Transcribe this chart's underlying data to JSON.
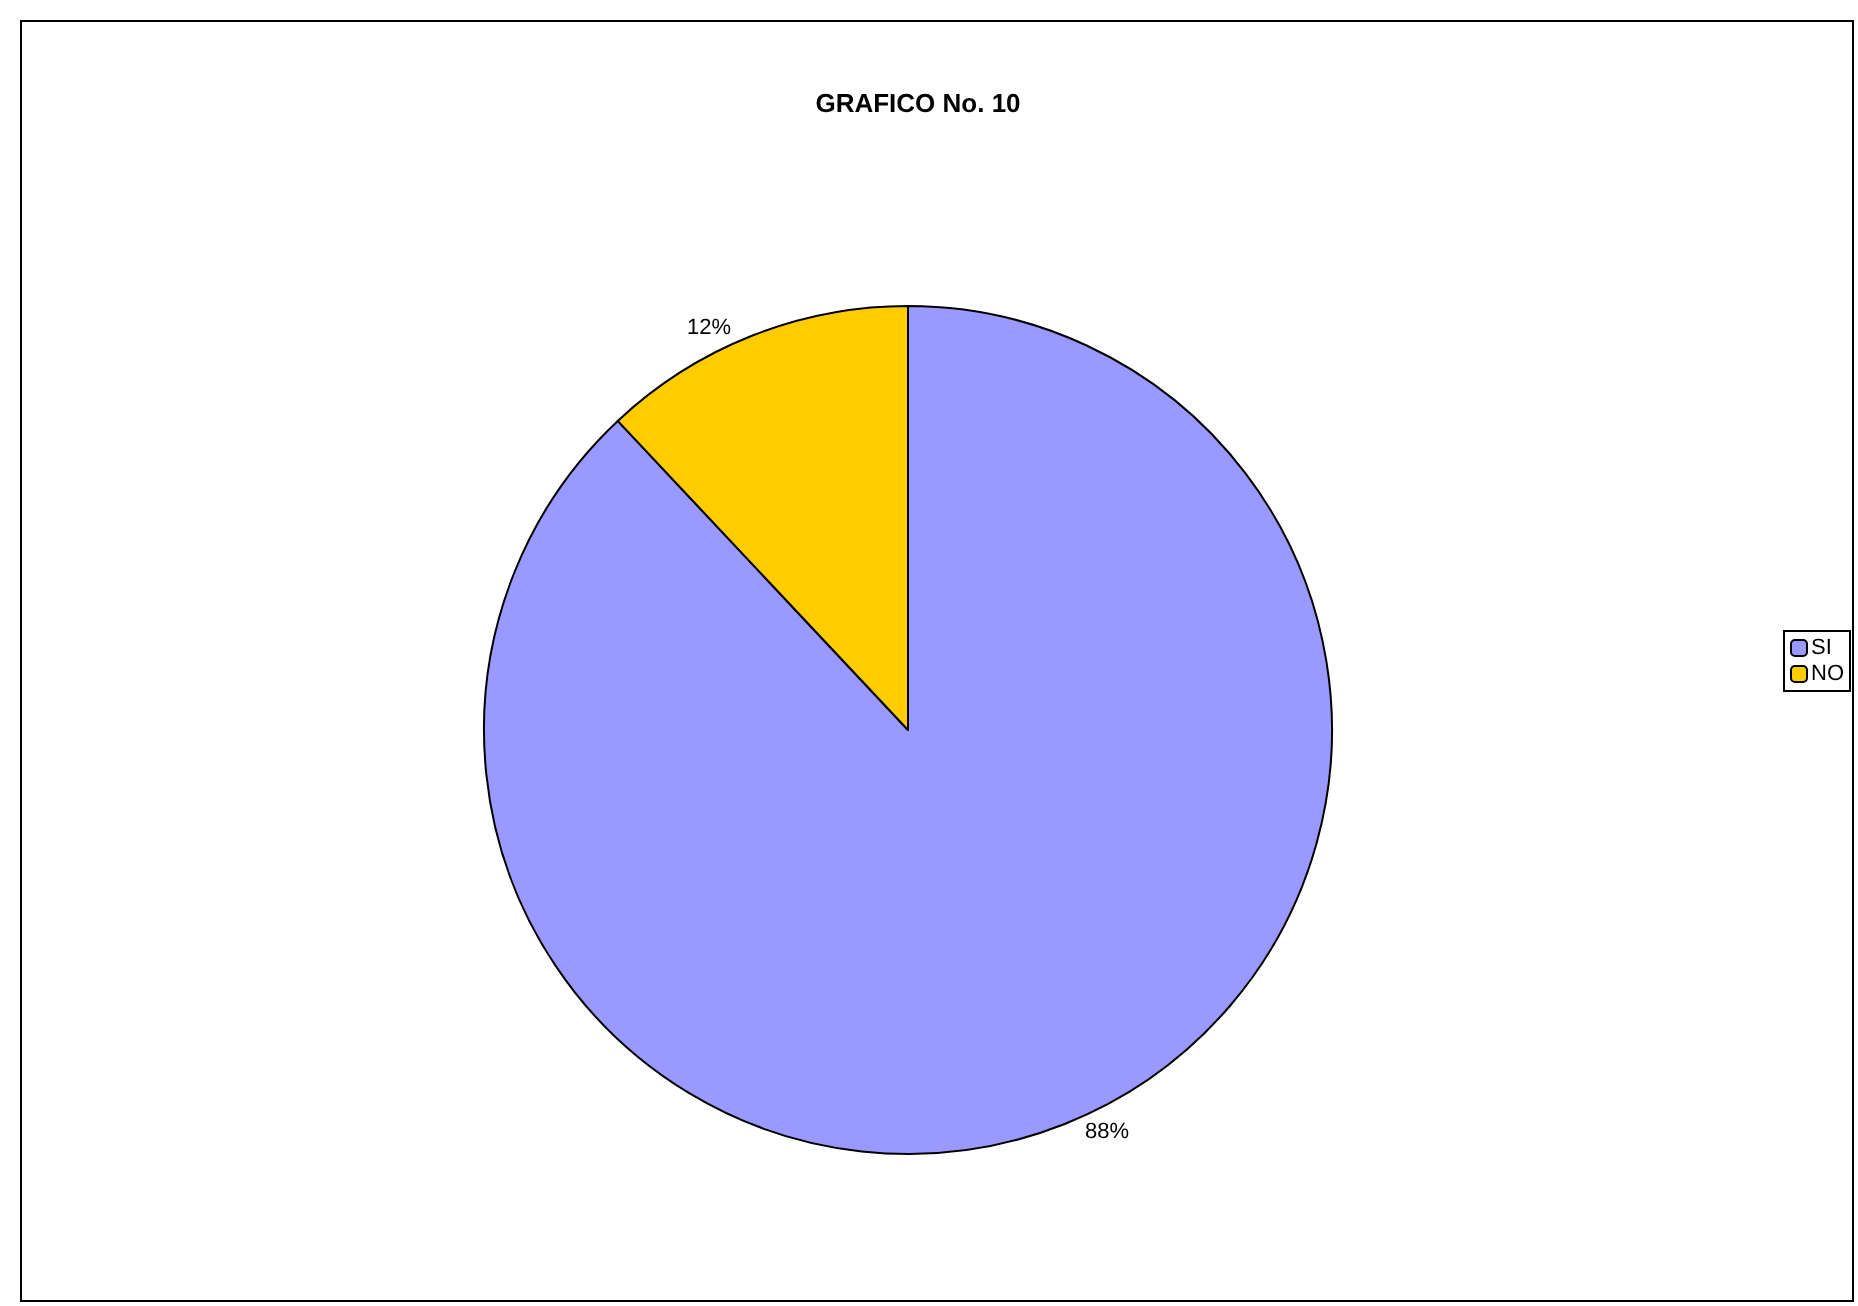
{
  "chart_data": {
    "type": "pie",
    "title": "GRAFICO No. 10",
    "categories": [
      "SI",
      "NO"
    ],
    "values": [
      88,
      12
    ],
    "colors": [
      "#9999ff",
      "#ffcc00"
    ],
    "value_labels": [
      "88%",
      "12%"
    ],
    "legend": "right"
  }
}
